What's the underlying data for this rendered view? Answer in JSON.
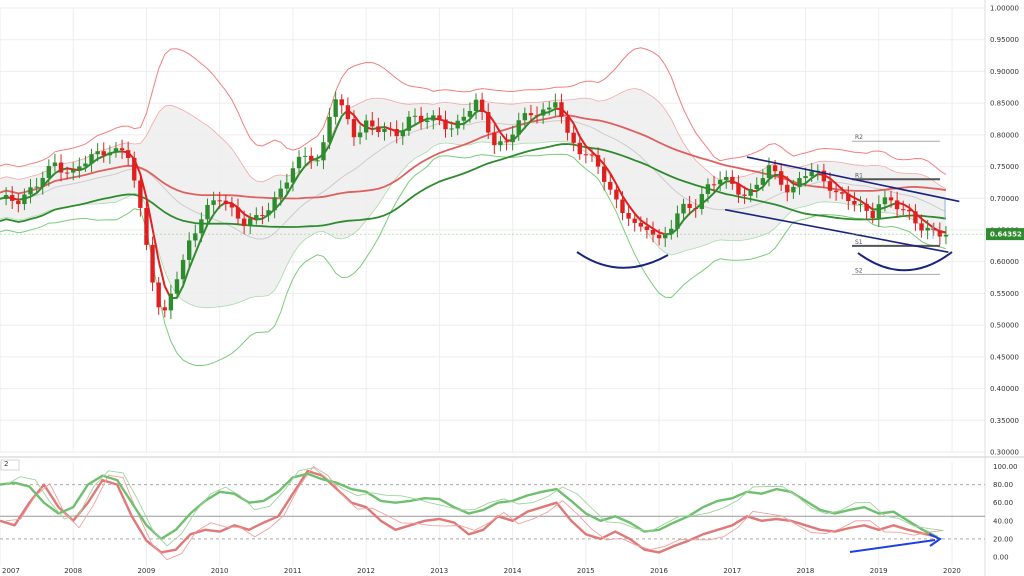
{
  "chart_data": [
    {
      "type": "candlestick",
      "timeframe": "monthly",
      "ylim": [
        0.3,
        1.0
      ],
      "y_ticks": [
        "1.00000",
        "0.95000",
        "0.90000",
        "0.85000",
        "0.80000",
        "0.75000",
        "0.70000",
        "0.65000",
        "0.60000",
        "0.55000",
        "0.50000",
        "0.45000",
        "0.40000",
        "0.35000",
        "0.30000"
      ],
      "x_ticks": [
        "2007",
        "2008",
        "2009",
        "2010",
        "2011",
        "2012",
        "2013",
        "2014",
        "2015",
        "2016",
        "2017",
        "2018",
        "2019",
        "2020"
      ],
      "x_range": [
        2007.0,
        2020.45
      ],
      "last_price": "0.64352",
      "last_price_value": 0.6435,
      "closes": [
        [
          2007.0,
          0.695
        ],
        [
          2007.25,
          0.7
        ],
        [
          2007.5,
          0.72
        ],
        [
          2007.75,
          0.755
        ],
        [
          2008.0,
          0.74
        ],
        [
          2008.25,
          0.765
        ],
        [
          2008.5,
          0.78
        ],
        [
          2008.75,
          0.765
        ],
        [
          2008.85,
          0.72
        ],
        [
          2008.95,
          0.66
        ],
        [
          2009.05,
          0.6
        ],
        [
          2009.15,
          0.53
        ],
        [
          2009.25,
          0.515
        ],
        [
          2009.35,
          0.555
        ],
        [
          2009.5,
          0.6
        ],
        [
          2009.6,
          0.64
        ],
        [
          2009.75,
          0.67
        ],
        [
          2009.9,
          0.69
        ],
        [
          2010.0,
          0.7
        ],
        [
          2010.2,
          0.68
        ],
        [
          2010.35,
          0.66
        ],
        [
          2010.5,
          0.665
        ],
        [
          2010.7,
          0.69
        ],
        [
          2010.85,
          0.72
        ],
        [
          2011.0,
          0.745
        ],
        [
          2011.2,
          0.77
        ],
        [
          2011.35,
          0.76
        ],
        [
          2011.45,
          0.8
        ],
        [
          2011.55,
          0.865
        ],
        [
          2011.7,
          0.83
        ],
        [
          2011.85,
          0.8
        ],
        [
          2012.0,
          0.82
        ],
        [
          2012.2,
          0.805
        ],
        [
          2012.4,
          0.8
        ],
        [
          2012.6,
          0.83
        ],
        [
          2012.8,
          0.82
        ],
        [
          2013.0,
          0.825
        ],
        [
          2013.2,
          0.81
        ],
        [
          2013.35,
          0.83
        ],
        [
          2013.5,
          0.85
        ],
        [
          2013.6,
          0.83
        ],
        [
          2013.75,
          0.79
        ],
        [
          2013.9,
          0.78
        ],
        [
          2014.1,
          0.825
        ],
        [
          2014.3,
          0.84
        ],
        [
          2014.5,
          0.835
        ],
        [
          2014.6,
          0.855
        ],
        [
          2014.75,
          0.8
        ],
        [
          2014.9,
          0.78
        ],
        [
          2015.0,
          0.77
        ],
        [
          2015.15,
          0.75
        ],
        [
          2015.3,
          0.72
        ],
        [
          2015.45,
          0.69
        ],
        [
          2015.6,
          0.67
        ],
        [
          2015.7,
          0.645
        ],
        [
          2015.85,
          0.655
        ],
        [
          2016.0,
          0.635
        ],
        [
          2016.15,
          0.655
        ],
        [
          2016.3,
          0.68
        ],
        [
          2016.5,
          0.69
        ],
        [
          2016.65,
          0.72
        ],
        [
          2016.8,
          0.73
        ],
        [
          2017.0,
          0.72
        ],
        [
          2017.2,
          0.705
        ],
        [
          2017.35,
          0.725
        ],
        [
          2017.5,
          0.745
        ],
        [
          2017.65,
          0.73
        ],
        [
          2017.8,
          0.71
        ],
        [
          2017.95,
          0.735
        ],
        [
          2018.05,
          0.74
        ],
        [
          2018.2,
          0.735
        ],
        [
          2018.35,
          0.72
        ],
        [
          2018.45,
          0.705
        ],
        [
          2018.6,
          0.695
        ],
        [
          2018.75,
          0.685
        ],
        [
          2018.9,
          0.675
        ],
        [
          2019.0,
          0.695
        ],
        [
          2019.15,
          0.695
        ],
        [
          2019.3,
          0.68
        ],
        [
          2019.45,
          0.675
        ],
        [
          2019.55,
          0.66
        ],
        [
          2019.7,
          0.645
        ],
        [
          2019.8,
          0.64
        ],
        [
          2019.9,
          0.6435
        ]
      ],
      "pivot_levels": [
        {
          "label": "R2",
          "value": 0.79
        },
        {
          "label": "R1",
          "value": 0.73
        },
        {
          "label": "S1",
          "value": 0.625
        },
        {
          "label": "S2",
          "value": 0.58
        }
      ],
      "colors": {
        "up": "#2e8b2e",
        "down": "#e02020",
        "ma_fast": "#e02020",
        "ma_slow": "#2e8b2e",
        "ma_mid": "#e06060",
        "bb_outer_upper": "#f08080",
        "bb_outer_lower": "#7acc7a",
        "price_badge": "#2e8b2e",
        "trendline": "#1a237e",
        "arrow": "#1e40e0"
      }
    },
    {
      "type": "line",
      "panel_label": "2",
      "ylim": [
        -10,
        105
      ],
      "y_ticks": [
        "100.00",
        "80.00",
        "60.00",
        "40.00",
        "20.00",
        "0.00"
      ],
      "reference_lines": [
        80,
        45,
        20
      ],
      "series": [
        {
          "color": "#e07878",
          "values": [
            [
              2007.0,
              40
            ],
            [
              2007.2,
              35
            ],
            [
              2007.4,
              60
            ],
            [
              2007.6,
              80
            ],
            [
              2007.8,
              55
            ],
            [
              2008.0,
              40
            ],
            [
              2008.2,
              60
            ],
            [
              2008.4,
              85
            ],
            [
              2008.6,
              80
            ],
            [
              2008.8,
              45
            ],
            [
              2009.0,
              18
            ],
            [
              2009.2,
              5
            ],
            [
              2009.4,
              8
            ],
            [
              2009.6,
              25
            ],
            [
              2009.8,
              30
            ],
            [
              2010.0,
              28
            ],
            [
              2010.2,
              35
            ],
            [
              2010.4,
              30
            ],
            [
              2010.6,
              38
            ],
            [
              2010.8,
              45
            ],
            [
              2011.0,
              70
            ],
            [
              2011.2,
              95
            ],
            [
              2011.4,
              90
            ],
            [
              2011.6,
              75
            ],
            [
              2011.8,
              60
            ],
            [
              2012.0,
              55
            ],
            [
              2012.2,
              40
            ],
            [
              2012.4,
              30
            ],
            [
              2012.6,
              35
            ],
            [
              2012.8,
              40
            ],
            [
              2013.0,
              42
            ],
            [
              2013.2,
              38
            ],
            [
              2013.4,
              25
            ],
            [
              2013.6,
              30
            ],
            [
              2013.8,
              45
            ],
            [
              2014.0,
              40
            ],
            [
              2014.2,
              50
            ],
            [
              2014.4,
              55
            ],
            [
              2014.6,
              60
            ],
            [
              2014.8,
              40
            ],
            [
              2015.0,
              25
            ],
            [
              2015.2,
              20
            ],
            [
              2015.4,
              28
            ],
            [
              2015.6,
              20
            ],
            [
              2015.8,
              8
            ],
            [
              2016.0,
              5
            ],
            [
              2016.2,
              12
            ],
            [
              2016.4,
              18
            ],
            [
              2016.6,
              25
            ],
            [
              2016.8,
              30
            ],
            [
              2017.0,
              35
            ],
            [
              2017.2,
              45
            ],
            [
              2017.4,
              40
            ],
            [
              2017.6,
              42
            ],
            [
              2017.8,
              40
            ],
            [
              2018.0,
              35
            ],
            [
              2018.2,
              30
            ],
            [
              2018.4,
              28
            ],
            [
              2018.6,
              32
            ],
            [
              2018.8,
              35
            ],
            [
              2019.0,
              30
            ],
            [
              2019.2,
              35
            ],
            [
              2019.4,
              30
            ],
            [
              2019.6,
              26
            ],
            [
              2019.8,
              22
            ]
          ]
        },
        {
          "color": "#6fbf6f",
          "values": [
            [
              2007.0,
              80
            ],
            [
              2007.2,
              82
            ],
            [
              2007.4,
              78
            ],
            [
              2007.6,
              60
            ],
            [
              2007.8,
              48
            ],
            [
              2008.0,
              55
            ],
            [
              2008.2,
              80
            ],
            [
              2008.4,
              90
            ],
            [
              2008.6,
              85
            ],
            [
              2008.8,
              60
            ],
            [
              2009.0,
              35
            ],
            [
              2009.2,
              20
            ],
            [
              2009.4,
              30
            ],
            [
              2009.6,
              48
            ],
            [
              2009.8,
              62
            ],
            [
              2010.0,
              72
            ],
            [
              2010.2,
              70
            ],
            [
              2010.4,
              60
            ],
            [
              2010.6,
              62
            ],
            [
              2010.8,
              72
            ],
            [
              2011.0,
              88
            ],
            [
              2011.2,
              92
            ],
            [
              2011.4,
              86
            ],
            [
              2011.6,
              82
            ],
            [
              2011.8,
              75
            ],
            [
              2012.0,
              72
            ],
            [
              2012.2,
              62
            ],
            [
              2012.4,
              60
            ],
            [
              2012.6,
              62
            ],
            [
              2012.8,
              65
            ],
            [
              2013.0,
              64
            ],
            [
              2013.2,
              55
            ],
            [
              2013.4,
              48
            ],
            [
              2013.6,
              52
            ],
            [
              2013.8,
              60
            ],
            [
              2014.0,
              62
            ],
            [
              2014.2,
              68
            ],
            [
              2014.4,
              72
            ],
            [
              2014.6,
              75
            ],
            [
              2014.8,
              62
            ],
            [
              2015.0,
              48
            ],
            [
              2015.2,
              40
            ],
            [
              2015.4,
              45
            ],
            [
              2015.6,
              38
            ],
            [
              2015.8,
              28
            ],
            [
              2016.0,
              30
            ],
            [
              2016.2,
              38
            ],
            [
              2016.4,
              45
            ],
            [
              2016.6,
              55
            ],
            [
              2016.8,
              62
            ],
            [
              2017.0,
              65
            ],
            [
              2017.2,
              72
            ],
            [
              2017.4,
              70
            ],
            [
              2017.6,
              75
            ],
            [
              2017.8,
              72
            ],
            [
              2018.0,
              62
            ],
            [
              2018.2,
              52
            ],
            [
              2018.4,
              48
            ],
            [
              2018.6,
              52
            ],
            [
              2018.8,
              55
            ],
            [
              2019.0,
              48
            ],
            [
              2019.2,
              50
            ],
            [
              2019.4,
              40
            ],
            [
              2019.6,
              30
            ],
            [
              2019.8,
              22
            ]
          ]
        }
      ]
    }
  ]
}
